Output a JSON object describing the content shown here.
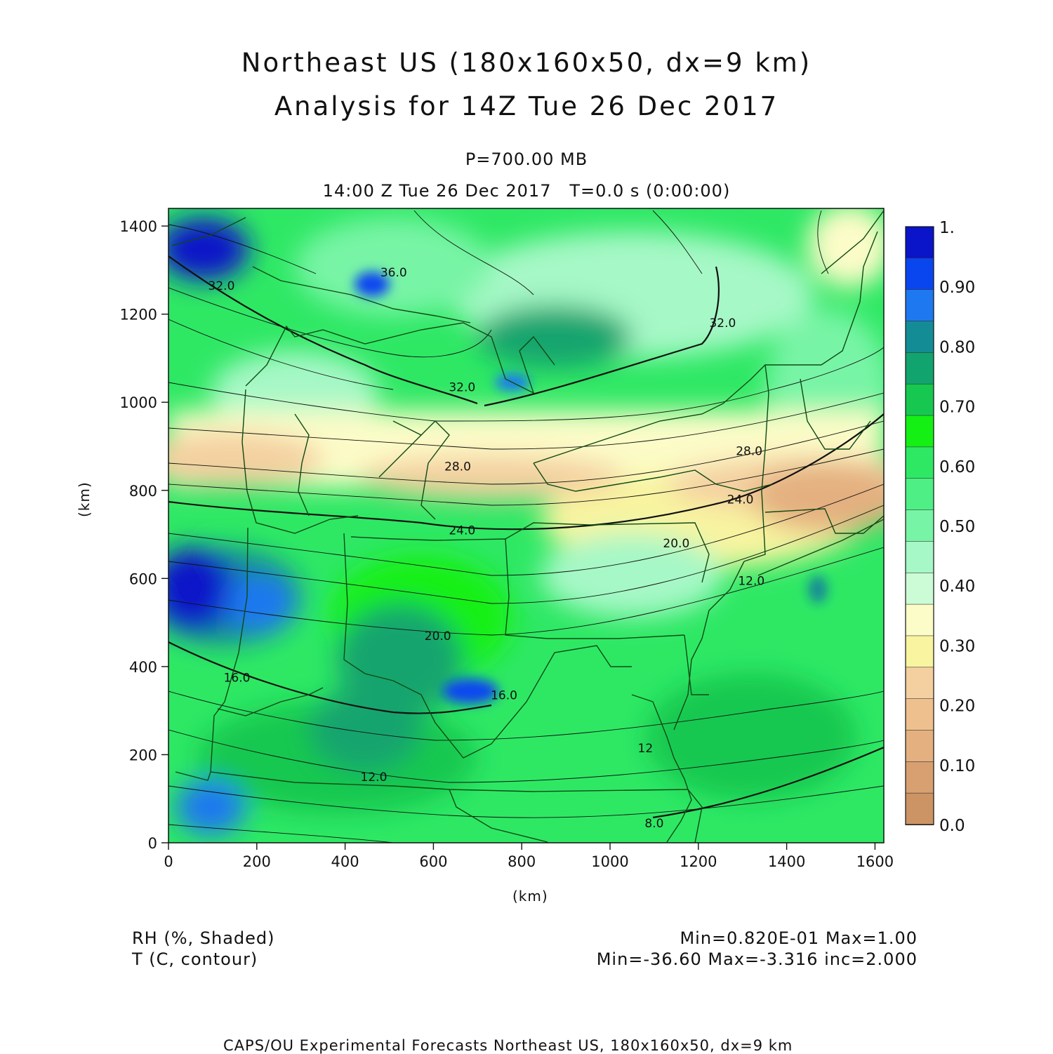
{
  "title": {
    "line1": "Northeast US (180x160x50, dx=9 km)",
    "line2": "Analysis for 14Z Tue 26 Dec 2017"
  },
  "subtitle": {
    "level": "P=700.00 MB",
    "time": "14:00 Z Tue 26 Dec 2017   T=0.0 s (0:00:00)"
  },
  "chart_data": {
    "type": "heatmap",
    "x_axis": {
      "label": "(km)",
      "range": [
        0,
        1620
      ],
      "ticks": [
        0,
        200,
        400,
        600,
        800,
        1000,
        1200,
        1400,
        1600
      ]
    },
    "y_axis": {
      "label": "(km)",
      "range": [
        0,
        1440
      ],
      "ticks": [
        0,
        200,
        400,
        600,
        800,
        1000,
        1200,
        1400
      ]
    },
    "shaded_field": "RH",
    "contour_field": "T",
    "colorbar": {
      "labels": [
        "1.",
        "0.90",
        "0.80",
        "0.70",
        "0.60",
        "0.50",
        "0.40",
        "0.30",
        "0.20",
        "0.10",
        "0.0"
      ],
      "colors": [
        "#0a14c8",
        "#0a46f0",
        "#1e78f0",
        "#148c96",
        "#12a46e",
        "#16c850",
        "#14f014",
        "#2ee864",
        "#4ef086",
        "#78f4a6",
        "#a6f8c6",
        "#ccfcd6",
        "#fcfcc8",
        "#f8f4a0",
        "#f4d0a0",
        "#eec08e",
        "#e4b080",
        "#d8a070",
        "#cc9464"
      ]
    },
    "contour_labels": [
      {
        "text": "36.0",
        "x": 510,
        "y": 1295
      },
      {
        "text": "32.0",
        "x": 120,
        "y": 1265
      },
      {
        "text": "32.0",
        "x": 1255,
        "y": 1180
      },
      {
        "text": "32.0",
        "x": 665,
        "y": 1035
      },
      {
        "text": "28.0",
        "x": 655,
        "y": 855
      },
      {
        "text": "28.0",
        "x": 1315,
        "y": 890
      },
      {
        "text": "24.0",
        "x": 1295,
        "y": 780
      },
      {
        "text": "24.0",
        "x": 665,
        "y": 710
      },
      {
        "text": "20.0",
        "x": 1150,
        "y": 680
      },
      {
        "text": "20.0",
        "x": 610,
        "y": 470
      },
      {
        "text": "16.0",
        "x": 155,
        "y": 375
      },
      {
        "text": "16.0",
        "x": 760,
        "y": 335
      },
      {
        "text": "12.0",
        "x": 465,
        "y": 150
      },
      {
        "text": "12",
        "x": 1080,
        "y": 215
      },
      {
        "text": "12.0",
        "x": 1320,
        "y": 595
      },
      {
        "text": "8.0",
        "x": 1100,
        "y": 45
      }
    ]
  },
  "footer_left": {
    "line1": "RH (%, Shaded)",
    "line2": "T (C, contour)"
  },
  "footer_right": {
    "line1": "Min=0.820E-01 Max=1.00",
    "line2": "Min=-36.60 Max=-3.316 inc=2.000"
  },
  "credit": "CAPS/OU Experimental Forecasts  Northeast US, 180x160x50, dx=9 km"
}
